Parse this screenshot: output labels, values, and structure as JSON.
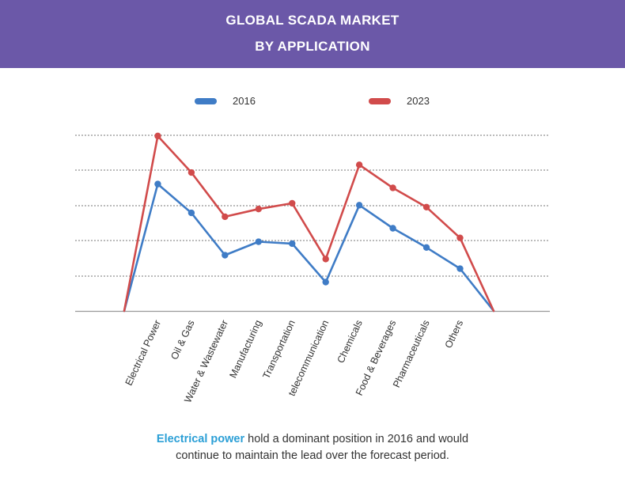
{
  "header": {
    "title_line1": "GLOBAL SCADA MARKET",
    "title_line2": "BY APPLICATION",
    "background": "#6b58a8"
  },
  "chart_data": {
    "type": "line",
    "title": "GLOBAL SCADA MARKET BY APPLICATION",
    "categories": [
      "",
      "Electrical Power",
      "Oil & Gas",
      "Water & Wastewater",
      "Manufacturing",
      "Transportation",
      "telecommunication",
      "Chemicals",
      "Food & Beverages",
      "Pharmaceuticals",
      "Others",
      ""
    ],
    "ylim": [
      0,
      100
    ],
    "grid": true,
    "legend_position": "top-center",
    "series": [
      {
        "name": "2016",
        "color": "#3f7cc6",
        "values": [
          0,
          66,
          51,
          29,
          36,
          35,
          15,
          55,
          43,
          33,
          22,
          0
        ]
      },
      {
        "name": "2023",
        "color": "#d14b4b",
        "values": [
          0,
          91,
          72,
          49,
          53,
          56,
          27,
          76,
          64,
          54,
          38,
          0
        ]
      }
    ]
  },
  "footnote": {
    "highlight": "Electrical power",
    "text_line1": " hold a dominant position in 2016 and would",
    "text_line2": "continue to maintain the lead over the forecast period.",
    "highlight_color": "#2b9fd6"
  }
}
